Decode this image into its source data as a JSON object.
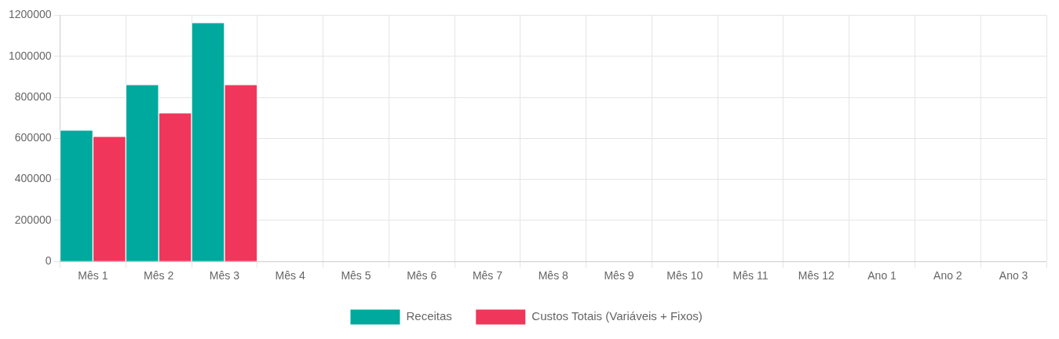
{
  "chart_data": {
    "type": "bar",
    "categories": [
      "Mês 1",
      "Mês 2",
      "Mês 3",
      "Mês 4",
      "Mês 5",
      "Mês 6",
      "Mês 7",
      "Mês 8",
      "Mês 9",
      "Mês 10",
      "Mês 11",
      "Mês 12",
      "Ano 1",
      "Ano 2",
      "Ano 3"
    ],
    "series": [
      {
        "name": "Receitas",
        "color": "#00a99d",
        "values": [
          640000,
          862000,
          1164000,
          null,
          null,
          null,
          null,
          null,
          null,
          null,
          null,
          null,
          null,
          null,
          null
        ]
      },
      {
        "name": "Custos Totais (Variáveis + Fixos)",
        "color": "#f0365a",
        "values": [
          609000,
          724000,
          862000,
          null,
          null,
          null,
          null,
          null,
          null,
          null,
          null,
          null,
          null,
          null,
          null
        ]
      }
    ],
    "ylim": [
      0,
      1200000
    ],
    "yticks": [
      0,
      200000,
      400000,
      600000,
      800000,
      1000000,
      1200000
    ],
    "grid": true,
    "legend": "bottom"
  }
}
